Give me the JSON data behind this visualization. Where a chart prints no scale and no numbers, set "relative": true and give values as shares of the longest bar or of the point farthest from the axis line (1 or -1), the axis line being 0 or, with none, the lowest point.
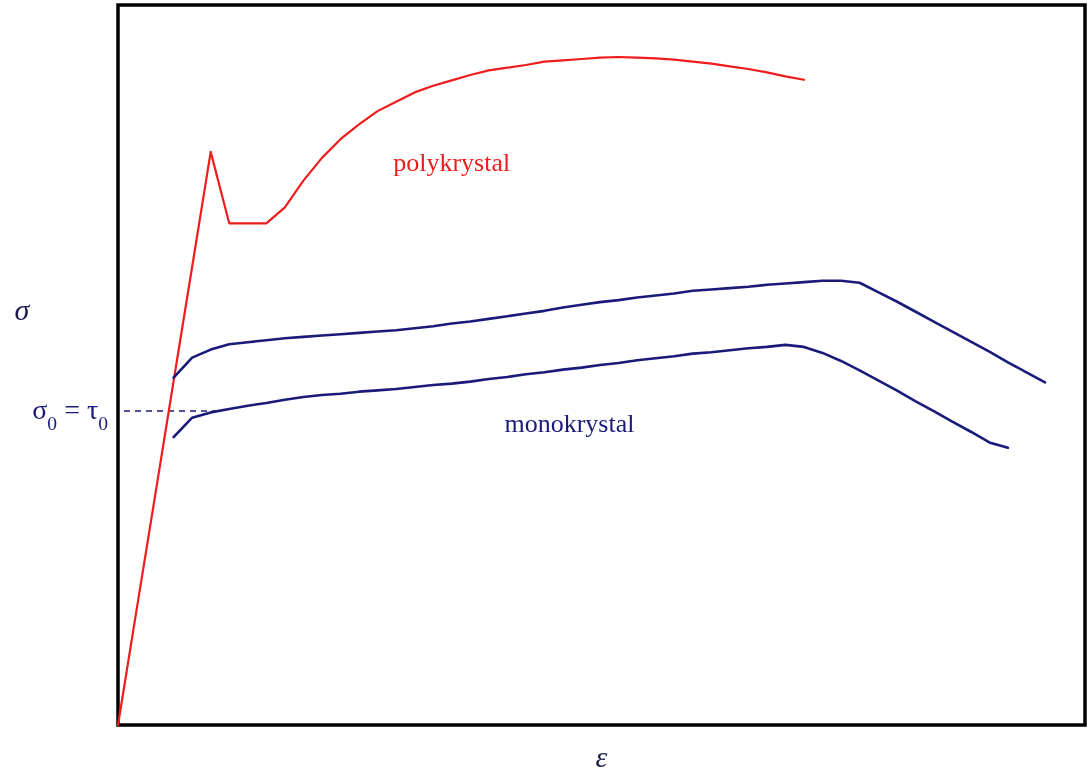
{
  "chart_data": {
    "type": "line",
    "relative": true,
    "xlabel": "ε",
    "ylabel": "σ",
    "line_style": "solid",
    "categories": [
      null,
      null,
      null,
      null,
      null,
      null,
      null,
      null,
      null,
      null,
      null,
      null,
      null,
      null,
      null,
      null,
      null,
      null,
      null,
      null,
      null,
      null,
      null,
      null,
      null,
      null,
      null,
      null,
      null,
      null,
      null,
      null,
      null,
      null,
      null,
      null,
      null,
      null,
      null,
      null,
      null,
      null,
      null,
      null,
      null,
      null,
      null,
      null,
      null,
      null,
      null
    ],
    "series": [
      {
        "name": "polykrystal",
        "color": "#ee1c1c",
        "values": [
          0,
          0.172,
          0.343,
          0.515,
          0.686,
          0.858,
          0.751,
          0.751,
          0.751,
          0.775,
          0.815,
          0.849,
          0.877,
          0.899,
          0.919,
          0.933,
          0.947,
          0.957,
          0.965,
          0.973,
          0.98,
          0.984,
          0.988,
          0.993,
          0.995,
          0.997,
          0.999,
          1.0,
          0.999,
          0.998,
          0.996,
          0.993,
          0.99,
          0.986,
          0.982,
          0.977,
          0.971,
          0.966,
          null,
          null,
          null,
          null,
          null,
          null,
          null,
          null,
          null,
          null,
          null,
          null,
          null
        ]
      },
      {
        "name": "monokrystal",
        "color": "#1a1a7a",
        "values": [
          null,
          null,
          null,
          0.431,
          0.46,
          0.468,
          0.473,
          0.478,
          0.482,
          0.487,
          0.491,
          0.494,
          0.496,
          0.499,
          0.501,
          0.503,
          0.506,
          0.509,
          0.511,
          0.514,
          0.518,
          0.521,
          0.525,
          0.528,
          0.532,
          0.535,
          0.539,
          0.542,
          0.546,
          0.549,
          0.552,
          0.556,
          0.558,
          0.561,
          0.564,
          0.566,
          0.569,
          0.566,
          0.557,
          0.545,
          0.531,
          0.516,
          0.501,
          0.485,
          0.47,
          0.454,
          0.439,
          0.423,
          0.415,
          null,
          null
        ]
      },
      {
        "color": "#1a1a7a",
        "values": [
          null,
          null,
          null,
          0.52,
          0.55,
          0.562,
          0.57,
          0.573,
          0.576,
          0.579,
          0.581,
          0.583,
          0.585,
          0.587,
          0.589,
          0.591,
          0.594,
          0.597,
          0.601,
          0.604,
          0.608,
          0.612,
          0.616,
          0.62,
          0.625,
          0.629,
          0.633,
          0.636,
          0.64,
          0.643,
          0.646,
          0.65,
          0.652,
          0.654,
          0.656,
          0.659,
          0.661,
          0.663,
          0.665,
          0.665,
          0.662,
          0.648,
          0.634,
          0.619,
          0.604,
          0.589,
          0.574,
          0.559,
          0.543,
          0.528,
          0.513
        ]
      }
    ],
    "ref_lines": [
      {
        "axis": "y",
        "value": 0.47,
        "label": "σ$_{0}$ = τ$_{0}$",
        "color": "#1a1a7a",
        "line_style": "dashed"
      }
    ]
  }
}
